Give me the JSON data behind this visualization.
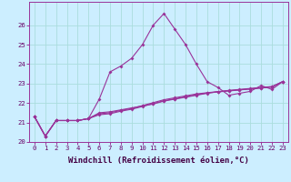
{
  "xlabel": "Windchill (Refroidissement éolien,°C)",
  "x_values": [
    0,
    1,
    2,
    3,
    4,
    5,
    6,
    7,
    8,
    9,
    10,
    11,
    12,
    13,
    14,
    15,
    16,
    17,
    18,
    19,
    20,
    21,
    22,
    23
  ],
  "line1": [
    21.3,
    20.3,
    21.1,
    21.1,
    21.1,
    21.2,
    22.2,
    23.6,
    23.9,
    24.3,
    25.0,
    26.0,
    26.6,
    25.8,
    25.0,
    24.0,
    23.1,
    22.8,
    22.4,
    22.5,
    22.6,
    22.9,
    22.7,
    23.1
  ],
  "line2": [
    21.3,
    20.3,
    21.1,
    21.1,
    21.1,
    21.2,
    21.5,
    21.55,
    21.65,
    21.75,
    21.85,
    21.95,
    22.1,
    22.2,
    22.3,
    22.4,
    22.5,
    22.58,
    22.63,
    22.68,
    22.73,
    22.78,
    22.83,
    23.1
  ],
  "line3": [
    21.3,
    20.3,
    21.1,
    21.1,
    21.1,
    21.2,
    21.4,
    21.45,
    21.58,
    21.68,
    21.82,
    21.97,
    22.12,
    22.22,
    22.32,
    22.42,
    22.52,
    22.57,
    22.62,
    22.67,
    22.72,
    22.77,
    22.82,
    23.1
  ],
  "line4": [
    21.3,
    20.3,
    21.1,
    21.1,
    21.1,
    21.2,
    21.45,
    21.5,
    21.62,
    21.72,
    21.87,
    22.02,
    22.17,
    22.27,
    22.37,
    22.47,
    22.53,
    22.59,
    22.65,
    22.7,
    22.75,
    22.8,
    22.85,
    23.1
  ],
  "color": "#993399",
  "bg_color": "#cceeff",
  "grid_color": "#aadddd",
  "ylim": [
    20.0,
    27.2
  ],
  "yticks": [
    20,
    21,
    22,
    23,
    24,
    25,
    26
  ],
  "xticks": [
    0,
    1,
    2,
    3,
    4,
    5,
    6,
    7,
    8,
    9,
    10,
    11,
    12,
    13,
    14,
    15,
    16,
    17,
    18,
    19,
    20,
    21,
    22,
    23
  ],
  "tick_fontsize": 5.2,
  "xlabel_fontsize": 6.5,
  "marker": "D",
  "markersize": 2.0,
  "linewidth": 0.8
}
